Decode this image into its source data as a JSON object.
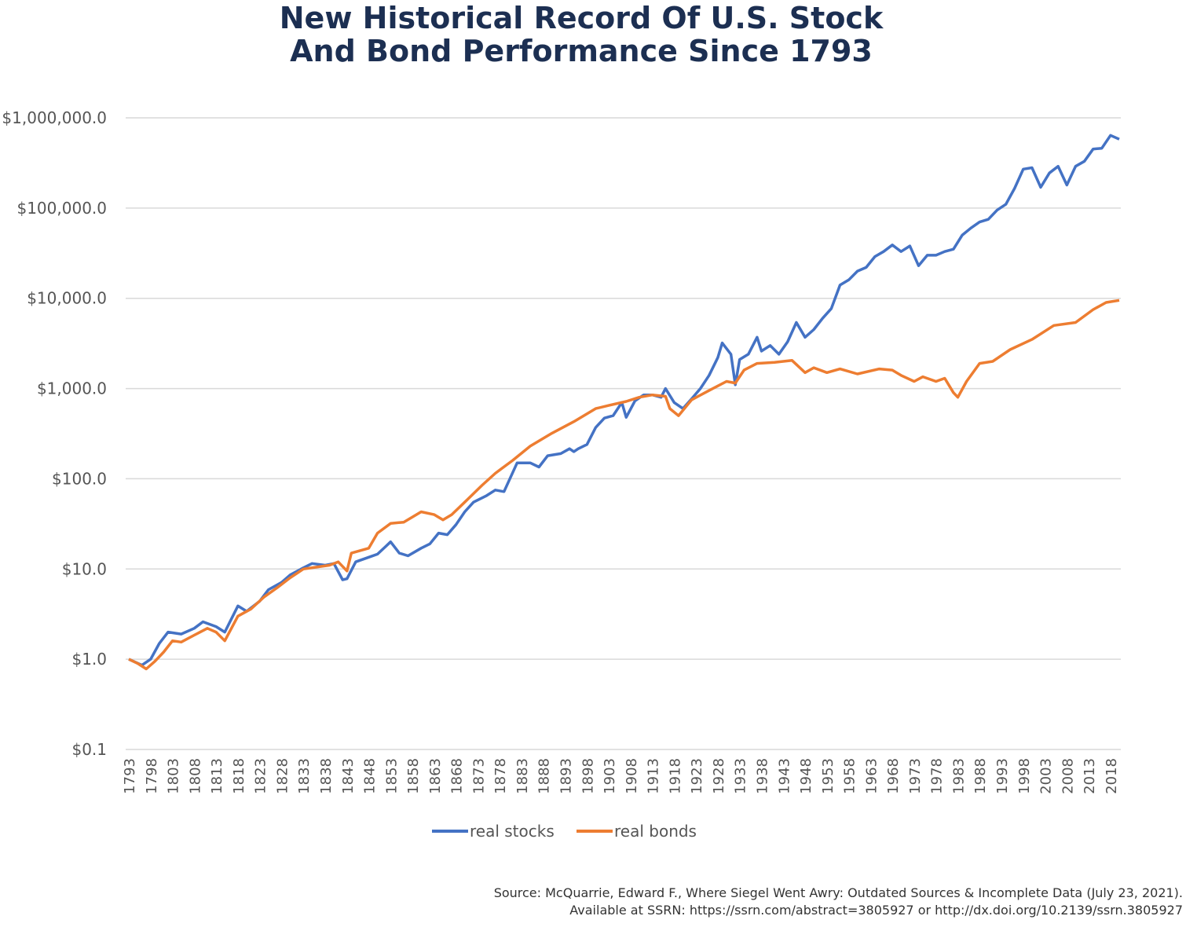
{
  "chart_data": {
    "type": "line",
    "title": "New Historical Record Of U.S. Stock And Bond Performance Since 1793",
    "title_lines": [
      "New Historical Record Of U.S. Stock",
      "And Bond Performance Since 1793"
    ],
    "y_scale": "log",
    "ylim": [
      0.1,
      1000000
    ],
    "y_ticks": [
      0.1,
      1,
      10,
      100,
      1000,
      10000,
      100000,
      1000000
    ],
    "y_tick_labels": [
      "$0.1",
      "$1.0",
      "$10.0",
      "$100.0",
      "$1,000.0",
      "$10,000.0",
      "$100,000.0",
      "$1,000,000.0"
    ],
    "xlim": [
      1793,
      2020
    ],
    "x_tick_labels": [
      "1793",
      "1798",
      "1803",
      "1808",
      "1813",
      "1818",
      "1823",
      "1828",
      "1833",
      "1838",
      "1843",
      "1848",
      "1853",
      "1858",
      "1863",
      "1868",
      "1873",
      "1878",
      "1883",
      "1888",
      "1893",
      "1898",
      "1903",
      "1908",
      "1913",
      "1918",
      "1923",
      "1928",
      "1933",
      "1938",
      "1943",
      "1948",
      "1953",
      "1958",
      "1963",
      "1968",
      "1973",
      "1978",
      "1983",
      "1988",
      "1993",
      "1998",
      "2003",
      "2008",
      "2013",
      "2018"
    ],
    "grid": "horizontal",
    "legend_placement": "bottom",
    "series": [
      {
        "name": "real stocks",
        "color": "#4472c4",
        "points": [
          [
            1793,
            1.0
          ],
          [
            1796,
            0.86
          ],
          [
            1798,
            1.0
          ],
          [
            1800,
            1.5
          ],
          [
            1802,
            2.0
          ],
          [
            1805,
            1.9
          ],
          [
            1808,
            2.2
          ],
          [
            1810,
            2.6
          ],
          [
            1813,
            2.3
          ],
          [
            1815,
            2.0
          ],
          [
            1818,
            3.9
          ],
          [
            1820,
            3.4
          ],
          [
            1823,
            4.4
          ],
          [
            1825,
            5.9
          ],
          [
            1828,
            7.1
          ],
          [
            1830,
            8.6
          ],
          [
            1833,
            10.3
          ],
          [
            1835,
            11.5
          ],
          [
            1838,
            11
          ],
          [
            1840,
            11.5
          ],
          [
            1842,
            7.6
          ],
          [
            1843,
            7.8
          ],
          [
            1845,
            12
          ],
          [
            1848,
            13.5
          ],
          [
            1850,
            14.6
          ],
          [
            1852,
            18
          ],
          [
            1853,
            20
          ],
          [
            1855,
            15
          ],
          [
            1857,
            14
          ],
          [
            1860,
            17
          ],
          [
            1862,
            19
          ],
          [
            1864,
            25
          ],
          [
            1866,
            24
          ],
          [
            1868,
            31
          ],
          [
            1870,
            43
          ],
          [
            1872,
            55
          ],
          [
            1875,
            65
          ],
          [
            1877,
            75
          ],
          [
            1879,
            72
          ],
          [
            1882,
            150
          ],
          [
            1885,
            150
          ],
          [
            1887,
            135
          ],
          [
            1889,
            180
          ],
          [
            1892,
            190
          ],
          [
            1894,
            215
          ],
          [
            1895,
            200
          ],
          [
            1896,
            215
          ],
          [
            1898,
            240
          ],
          [
            1900,
            370
          ],
          [
            1902,
            470
          ],
          [
            1904,
            500
          ],
          [
            1906,
            700
          ],
          [
            1907,
            480
          ],
          [
            1909,
            730
          ],
          [
            1911,
            850
          ],
          [
            1913,
            850
          ],
          [
            1915,
            800
          ],
          [
            1916,
            1000
          ],
          [
            1918,
            700
          ],
          [
            1920,
            600
          ],
          [
            1922,
            770
          ],
          [
            1924,
            1000
          ],
          [
            1926,
            1400
          ],
          [
            1928,
            2200
          ],
          [
            1929,
            3200
          ],
          [
            1931,
            2400
          ],
          [
            1932,
            1100
          ],
          [
            1933,
            2100
          ],
          [
            1935,
            2400
          ],
          [
            1937,
            3700
          ],
          [
            1938,
            2600
          ],
          [
            1940,
            3000
          ],
          [
            1942,
            2400
          ],
          [
            1944,
            3300
          ],
          [
            1946,
            5400
          ],
          [
            1948,
            3700
          ],
          [
            1950,
            4500
          ],
          [
            1952,
            6000
          ],
          [
            1954,
            7700
          ],
          [
            1956,
            14000
          ],
          [
            1958,
            16000
          ],
          [
            1960,
            20000
          ],
          [
            1962,
            22000
          ],
          [
            1964,
            29000
          ],
          [
            1966,
            33000
          ],
          [
            1968,
            39000
          ],
          [
            1970,
            33000
          ],
          [
            1972,
            38000
          ],
          [
            1974,
            23000
          ],
          [
            1976,
            30000
          ],
          [
            1978,
            30000
          ],
          [
            1980,
            33000
          ],
          [
            1982,
            35000
          ],
          [
            1984,
            50000
          ],
          [
            1986,
            60000
          ],
          [
            1988,
            70000
          ],
          [
            1990,
            75000
          ],
          [
            1992,
            95000
          ],
          [
            1994,
            110000
          ],
          [
            1996,
            165000
          ],
          [
            1998,
            270000
          ],
          [
            2000,
            280000
          ],
          [
            2002,
            170000
          ],
          [
            2004,
            245000
          ],
          [
            2006,
            290000
          ],
          [
            2008,
            180000
          ],
          [
            2010,
            290000
          ],
          [
            2012,
            330000
          ],
          [
            2014,
            450000
          ],
          [
            2016,
            460000
          ],
          [
            2018,
            640000
          ],
          [
            2020,
            580000
          ]
        ]
      },
      {
        "name": "real bonds",
        "color": "#ed7d31",
        "points": [
          [
            1793,
            1.0
          ],
          [
            1795,
            0.9
          ],
          [
            1797,
            0.78
          ],
          [
            1799,
            0.95
          ],
          [
            1801,
            1.2
          ],
          [
            1803,
            1.6
          ],
          [
            1805,
            1.55
          ],
          [
            1808,
            1.85
          ],
          [
            1811,
            2.2
          ],
          [
            1813,
            2.0
          ],
          [
            1815,
            1.6
          ],
          [
            1818,
            3.0
          ],
          [
            1821,
            3.6
          ],
          [
            1824,
            4.9
          ],
          [
            1827,
            6.2
          ],
          [
            1830,
            8.0
          ],
          [
            1833,
            10
          ],
          [
            1836,
            10.5
          ],
          [
            1839,
            11
          ],
          [
            1841,
            12
          ],
          [
            1843,
            9.5
          ],
          [
            1844,
            15
          ],
          [
            1848,
            17
          ],
          [
            1850,
            25
          ],
          [
            1853,
            32
          ],
          [
            1856,
            33
          ],
          [
            1860,
            43
          ],
          [
            1863,
            40
          ],
          [
            1865,
            35
          ],
          [
            1867,
            40
          ],
          [
            1870,
            55
          ],
          [
            1874,
            85
          ],
          [
            1877,
            115
          ],
          [
            1881,
            160
          ],
          [
            1885,
            230
          ],
          [
            1890,
            320
          ],
          [
            1895,
            430
          ],
          [
            1900,
            600
          ],
          [
            1903,
            650
          ],
          [
            1907,
            720
          ],
          [
            1910,
            800
          ],
          [
            1913,
            850
          ],
          [
            1916,
            820
          ],
          [
            1917,
            600
          ],
          [
            1919,
            500
          ],
          [
            1922,
            750
          ],
          [
            1926,
            950
          ],
          [
            1930,
            1200
          ],
          [
            1932,
            1150
          ],
          [
            1934,
            1600
          ],
          [
            1937,
            1900
          ],
          [
            1941,
            1950
          ],
          [
            1945,
            2050
          ],
          [
            1948,
            1500
          ],
          [
            1950,
            1700
          ],
          [
            1953,
            1500
          ],
          [
            1956,
            1650
          ],
          [
            1960,
            1450
          ],
          [
            1965,
            1650
          ],
          [
            1968,
            1600
          ],
          [
            1970,
            1400
          ],
          [
            1973,
            1200
          ],
          [
            1975,
            1350
          ],
          [
            1978,
            1200
          ],
          [
            1980,
            1300
          ],
          [
            1982,
            900
          ],
          [
            1983,
            800
          ],
          [
            1985,
            1200
          ],
          [
            1988,
            1900
          ],
          [
            1991,
            2000
          ],
          [
            1995,
            2700
          ],
          [
            2000,
            3500
          ],
          [
            2005,
            5000
          ],
          [
            2010,
            5400
          ],
          [
            2014,
            7500
          ],
          [
            2017,
            9000
          ],
          [
            2020,
            9500
          ]
        ]
      }
    ]
  },
  "source": {
    "line1": "Source: McQuarrie, Edward F., Where Siegel Went Awry: Outdated Sources & Incomplete Data (July 23, 2021).",
    "line2": "Available at SSRN: https://ssrn.com/abstract=3805927 or http://dx.doi.org/10.2139/ssrn.3805927"
  }
}
